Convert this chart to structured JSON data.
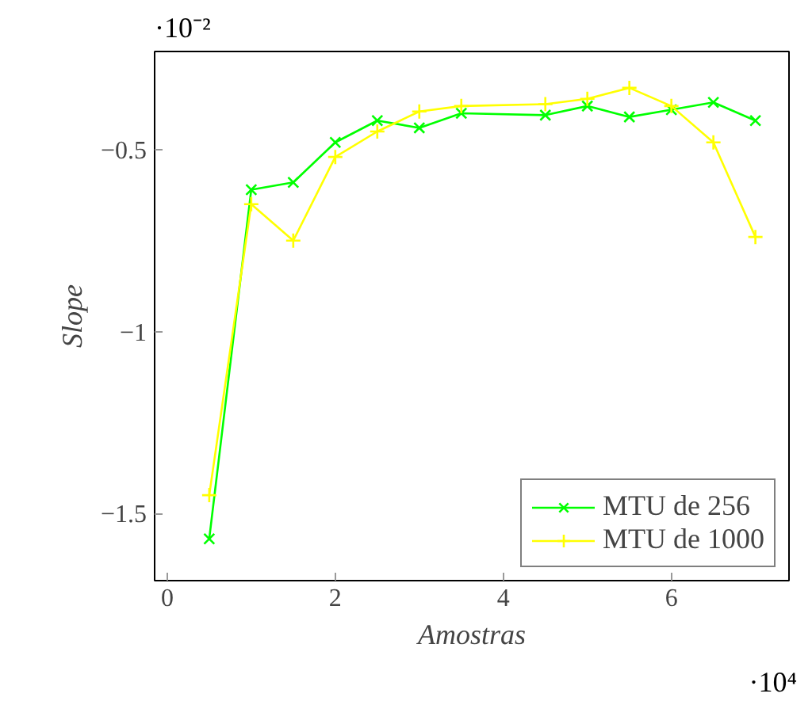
{
  "chart_data": {
    "type": "line",
    "xlabel": "Amostras",
    "ylabel": "Slope",
    "x": [
      0.5,
      1.0,
      1.5,
      2.0,
      2.5,
      3.0,
      3.5,
      4.5,
      5.0,
      5.5,
      6.0,
      6.5,
      7.0
    ],
    "series": [
      {
        "name": "MTU de 256",
        "color": "#00ff00",
        "marker": "x",
        "values": [
          -1.57,
          -0.61,
          -0.59,
          -0.48,
          -0.42,
          -0.44,
          -0.4,
          -0.405,
          -0.38,
          -0.41,
          -0.39,
          -0.37,
          -0.42
        ]
      },
      {
        "name": "MTU de 1000",
        "color": "#ffff00",
        "marker": "cross",
        "values": [
          -1.45,
          -0.65,
          -0.75,
          -0.52,
          -0.45,
          -0.395,
          -0.38,
          -0.375,
          -0.36,
          -0.33,
          -0.38,
          -0.48,
          -0.74
        ]
      }
    ],
    "xlim": [
      -0.15,
      7.4
    ],
    "ylim": [
      -1.685,
      -0.23
    ],
    "xticks": [
      0,
      2,
      4,
      6
    ],
    "yticks": [
      {
        "value": -1.5,
        "label": "−1.5"
      },
      {
        "value": -1,
        "label": "−1"
      },
      {
        "value": -0.5,
        "label": "−0.5"
      }
    ],
    "annotations": [
      "·10⁻²",
      "·10⁴"
    ],
    "grid": false,
    "legend": "bottom right",
    "line_style": "solid"
  }
}
